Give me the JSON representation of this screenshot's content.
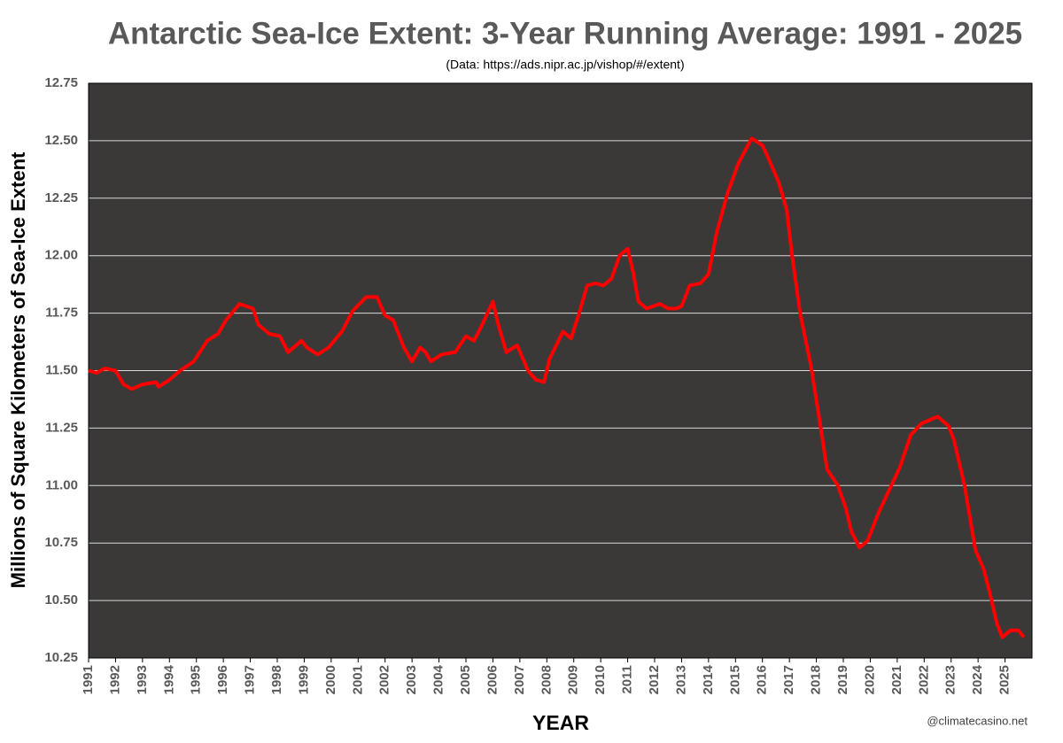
{
  "chart_data": {
    "type": "line",
    "title": "Antarctic Sea-Ice Extent: 3-Year Running Average: 1991 - 2025",
    "subtitle": "(Data: https://ads.nipr.ac.jp/vishop/#/extent)",
    "xlabel": "YEAR",
    "ylabel": "Millions of Square Kilometers of Sea-Ice Extent",
    "annotation": "@climatecasino.net",
    "xlim": [
      1991,
      2026
    ],
    "xticks": [
      1991,
      1992,
      1993,
      1994,
      1995,
      1996,
      1997,
      1998,
      1999,
      2000,
      2001,
      2002,
      2003,
      2004,
      2005,
      2006,
      2007,
      2008,
      2009,
      2010,
      2011,
      2012,
      2013,
      2014,
      2015,
      2016,
      2017,
      2018,
      2019,
      2020,
      2021,
      2022,
      2023,
      2024,
      2025
    ],
    "ylim": [
      10.25,
      12.75
    ],
    "yticks": [
      10.25,
      {
        "value": 10.5,
        "label": "10.50"
      },
      10.75,
      {
        "value": 11,
        "label": "11.00"
      },
      11.25,
      {
        "value": 11.5,
        "label": "11.50"
      },
      11.75,
      {
        "value": 12,
        "label": "12.00"
      },
      12.25,
      {
        "value": 12.5,
        "label": "12.50"
      },
      12.75
    ],
    "grid": true,
    "background": "#3b3838",
    "x": [
      1991.0,
      1991.3,
      1991.6,
      1992.0,
      1992.3,
      1992.6,
      1993.0,
      1993.5,
      1993.6,
      1994.0,
      1994.4,
      1994.9,
      1995.4,
      1995.8,
      1996.1,
      1996.6,
      1997.1,
      1997.3,
      1997.7,
      1998.1,
      1998.4,
      1998.9,
      1999.1,
      1999.5,
      1999.9,
      2000.4,
      2000.8,
      2001.3,
      2001.7,
      2002.0,
      2002.3,
      2002.7,
      2003.0,
      2003.3,
      2003.5,
      2003.7,
      2004.1,
      2004.6,
      2005.0,
      2005.3,
      2005.6,
      2006.0,
      2006.2,
      2006.5,
      2006.9,
      2007.3,
      2007.6,
      2007.9,
      2008.1,
      2008.6,
      2008.9,
      2009.2,
      2009.5,
      2009.8,
      2010.1,
      2010.4,
      2010.7,
      2011.0,
      2011.2,
      2011.4,
      2011.7,
      2012.2,
      2012.5,
      2012.8,
      2013.0,
      2013.3,
      2013.7,
      2014.0,
      2014.3,
      2014.7,
      2015.1,
      2015.6,
      2016.0,
      2016.2,
      2016.6,
      2016.9,
      2017.1,
      2017.4,
      2017.8,
      2018.1,
      2018.4,
      2018.8,
      2019.1,
      2019.3,
      2019.6,
      2019.9,
      2020.3,
      2020.7,
      2021.1,
      2021.5,
      2021.9,
      2022.1,
      2022.5,
      2022.9,
      2023.1,
      2023.5,
      2023.9,
      2024.2,
      2024.4,
      2024.7,
      2024.9,
      2025.2,
      2025.5,
      2025.7
    ],
    "series": [
      {
        "name": "3-Year Running Average",
        "color": "#ff0000",
        "values": [
          11.5,
          11.49,
          11.51,
          11.5,
          11.44,
          11.42,
          11.44,
          11.45,
          11.43,
          11.46,
          11.5,
          11.54,
          11.63,
          11.66,
          11.72,
          11.79,
          11.77,
          11.7,
          11.66,
          11.65,
          11.58,
          11.63,
          11.6,
          11.57,
          11.6,
          11.67,
          11.76,
          11.82,
          11.82,
          11.74,
          11.72,
          11.6,
          11.54,
          11.6,
          11.58,
          11.54,
          11.57,
          11.58,
          11.65,
          11.63,
          11.7,
          11.8,
          11.7,
          11.58,
          11.61,
          11.5,
          11.46,
          11.45,
          11.55,
          11.67,
          11.64,
          11.75,
          11.87,
          11.88,
          11.87,
          11.9,
          12.0,
          12.03,
          11.93,
          11.8,
          11.77,
          11.79,
          11.77,
          11.77,
          11.78,
          11.87,
          11.88,
          11.92,
          12.1,
          12.27,
          12.4,
          12.51,
          12.48,
          12.43,
          12.32,
          12.2,
          12.0,
          11.75,
          11.52,
          11.3,
          11.07,
          11.0,
          10.9,
          10.8,
          10.73,
          10.76,
          10.88,
          10.98,
          11.08,
          11.22,
          11.27,
          11.28,
          11.3,
          11.26,
          11.2,
          11.0,
          10.72,
          10.64,
          10.55,
          10.4,
          10.34,
          10.37,
          10.37,
          10.34
        ]
      }
    ]
  }
}
